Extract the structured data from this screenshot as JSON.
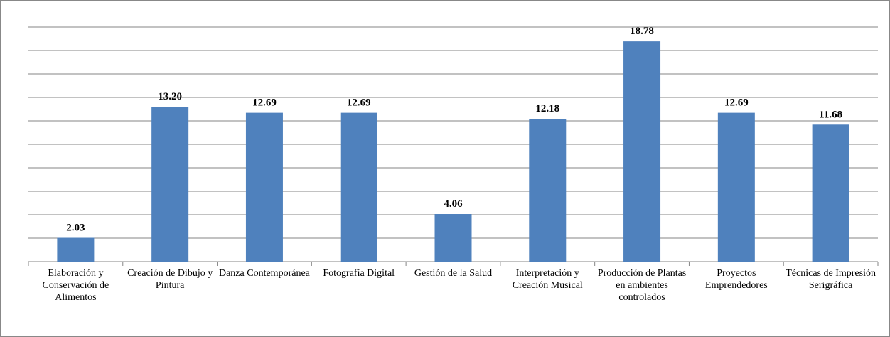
{
  "chart_data": {
    "type": "bar",
    "categories": [
      "Elaboración y Conservación de Alimentos",
      "Creación de Dibujo y Pintura",
      "Danza Contemporánea",
      "Fotografía Digital",
      "Gestión de la Salud",
      "Interpretación y Creación Musical",
      "Producción de Plantas en ambientes controlados",
      "Proyectos Emprendedores",
      "Técnicas de Impresión Serigráfica"
    ],
    "values": [
      2.03,
      13.2,
      12.69,
      12.69,
      4.06,
      12.18,
      18.78,
      12.69,
      11.68
    ],
    "value_labels": [
      "2.03",
      "13.20",
      "12.69",
      "12.69",
      "4.06",
      "12.18",
      "18.78",
      "12.69",
      "11.68"
    ],
    "color": "#4f81bd",
    "ylim": [
      0,
      20
    ],
    "yticks": [
      0,
      2,
      4,
      6,
      8,
      10,
      12,
      14,
      16,
      18,
      20
    ],
    "grid": true
  }
}
